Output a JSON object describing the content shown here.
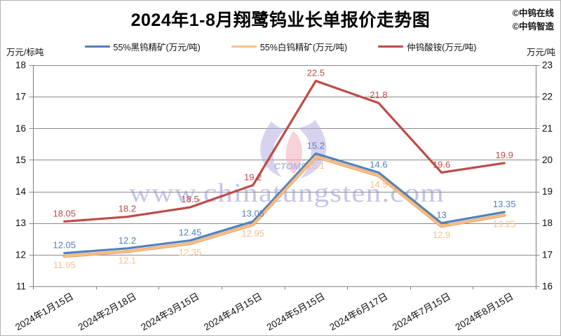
{
  "header": {
    "credits": [
      "©中钨在线",
      "©中钨智造"
    ]
  },
  "watermark": {
    "text": "www.chinatungsten.com",
    "logo_text": "CTOMS",
    "text_color": "#9494d8",
    "logo_lavender": "#b6afe2",
    "logo_pink": "#f3b3c0",
    "logo_text_color": "#a9b6da"
  },
  "chart_data": {
    "type": "line",
    "title": "2024年1-8月翔鹭钨业长单报价走势图",
    "categories": [
      "2024年1月15日",
      "2024年2月18日",
      "2024年3月15日",
      "2024年4月15日",
      "2024年5月15日",
      "2024年6月17日",
      "2024年7月15日",
      "2024年8月15日"
    ],
    "series": [
      {
        "name": "55%黑钨精矿(万元/吨)",
        "axis": "left",
        "color": "#4F81BD",
        "label_side": "above",
        "values": [
          12.05,
          12.2,
          12.45,
          13.05,
          15.2,
          14.6,
          13,
          13.35
        ]
      },
      {
        "name": "55%白钨精矿(万元/吨)",
        "axis": "left",
        "color": "#FAC08F",
        "edge": "#E9A45B",
        "label_side": "below",
        "values": [
          11.95,
          12.1,
          12.35,
          12.95,
          15.1,
          14.5,
          12.9,
          13.25
        ]
      },
      {
        "name": "仲钨酸铵(万元/吨)",
        "axis": "right",
        "color": "#BE4B48",
        "label_side": "above",
        "values": [
          18.05,
          18.2,
          18.5,
          19.2,
          22.5,
          21.8,
          19.6,
          19.9
        ]
      }
    ],
    "left_axis": {
      "label": "万元/标吨",
      "min": 11,
      "max": 18,
      "step": 1
    },
    "right_axis": {
      "label": "万元/吨",
      "min": 16,
      "max": 23,
      "step": 1
    },
    "grid": true,
    "legend_position": "top"
  }
}
